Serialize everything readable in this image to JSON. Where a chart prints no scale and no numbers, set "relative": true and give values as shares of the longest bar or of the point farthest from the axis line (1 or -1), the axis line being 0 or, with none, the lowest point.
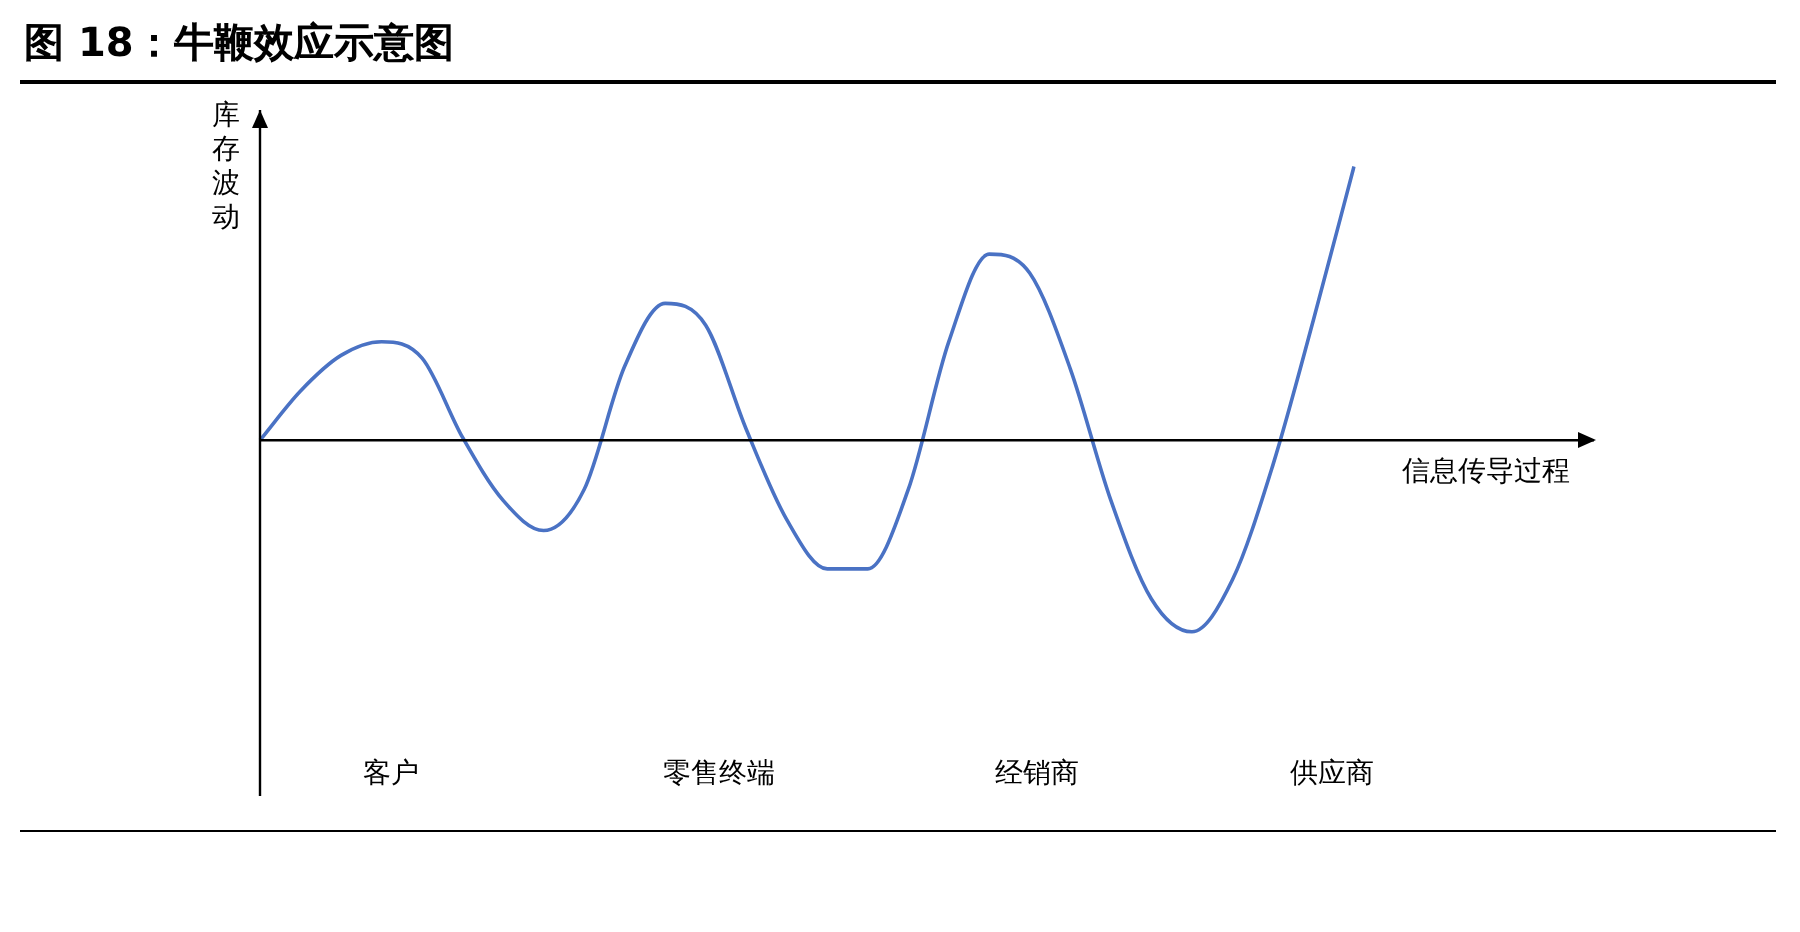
{
  "chart_data": {
    "type": "line",
    "title": "图 18：牛鞭效应示意图",
    "xlabel": "信息传导过程",
    "ylabel": "库存波动",
    "relative": true,
    "tick_labels": false,
    "color": "#4a72c4",
    "categories": [
      null,
      null,
      null,
      null,
      null,
      null,
      null,
      null,
      null,
      null,
      null,
      null,
      null,
      null,
      null,
      null,
      null,
      null,
      null,
      null,
      null,
      null,
      null,
      null,
      null,
      null,
      null,
      null
    ],
    "values": [
      0,
      0.18,
      0.31,
      0.36,
      0.3,
      0.01,
      -0.22,
      -0.33,
      -0.18,
      0.27,
      0.5,
      0.42,
      0.04,
      -0.29,
      -0.47,
      -0.47,
      -0.18,
      0.36,
      0.68,
      0.61,
      0.26,
      -0.22,
      -0.58,
      -0.7,
      -0.51,
      -0.09,
      0.44,
      1
    ],
    "annotations": [
      "客户",
      "零售终端",
      "经销商",
      "供应商"
    ]
  }
}
